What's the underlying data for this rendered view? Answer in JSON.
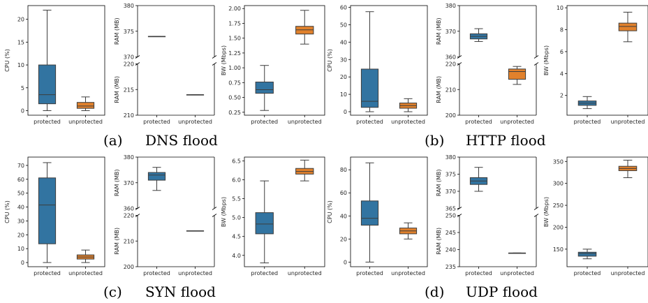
{
  "colors": {
    "protected": "#3274a1",
    "unprotected": "#e1812c",
    "line": "#3d3d3d"
  },
  "captions": [
    {
      "letter": "(a)",
      "title": "DNS flood"
    },
    {
      "letter": "(b)",
      "title": "HTTP flood"
    },
    {
      "letter": "(c)",
      "title": "SYN flood"
    },
    {
      "letter": "(d)",
      "title": "UDP flood"
    }
  ],
  "chart_data": [
    {
      "type": "box",
      "group": "DNS flood",
      "ylabel": "CPU (%)",
      "categories": [
        "protected",
        "unprotected"
      ],
      "ylim": [
        -1,
        23
      ],
      "yticks": [
        0,
        5,
        10,
        15,
        20
      ],
      "boxes": [
        {
          "min": 0,
          "q1": 1.5,
          "median": 3.5,
          "q3": 10,
          "max": 22
        },
        {
          "min": 0,
          "q1": 0.5,
          "median": 1.0,
          "q3": 1.8,
          "max": 3
        }
      ]
    },
    {
      "type": "box",
      "group": "DNS flood",
      "ylabel": "RAM (MB)",
      "broken_axis": true,
      "categories": [
        "protected",
        "unprotected"
      ],
      "top_ylim": [
        370,
        380
      ],
      "top_yticks": [
        370,
        375,
        380
      ],
      "bottom_ylim": [
        210,
        220
      ],
      "bottom_yticks": [
        210,
        215,
        220
      ],
      "boxes": [
        {
          "min": 374,
          "q1": 374,
          "median": 374,
          "q3": 374,
          "max": 374
        },
        {
          "min": 214,
          "q1": 214,
          "median": 214,
          "q3": 214,
          "max": 214
        }
      ]
    },
    {
      "type": "box",
      "group": "DNS flood",
      "ylabel": "BW (Mbps)",
      "categories": [
        "protected",
        "unprotected"
      ],
      "ylim": [
        0.2,
        2.05
      ],
      "yticks": [
        0.25,
        0.5,
        0.75,
        1.0,
        1.25,
        1.5,
        1.75,
        2.0
      ],
      "ytick_labels": [
        "0.25",
        "0.50",
        "0.75",
        "1.00",
        "1.25",
        "1.50",
        "1.75",
        "2.00"
      ],
      "boxes": [
        {
          "min": 0.28,
          "q1": 0.57,
          "median": 0.63,
          "q3": 0.76,
          "max": 1.04
        },
        {
          "min": 1.4,
          "q1": 1.57,
          "median": 1.64,
          "q3": 1.7,
          "max": 1.97
        }
      ]
    },
    {
      "type": "box",
      "group": "HTTP flood",
      "ylabel": "CPU (%)",
      "categories": [
        "protected",
        "unprotected"
      ],
      "ylim": [
        -2,
        61
      ],
      "yticks": [
        0,
        10,
        20,
        30,
        40,
        50,
        60
      ],
      "boxes": [
        {
          "min": 0,
          "q1": 2.5,
          "median": 6,
          "q3": 24.5,
          "max": 57.5
        },
        {
          "min": 0,
          "q1": 2,
          "median": 3.5,
          "q3": 5,
          "max": 7.5
        }
      ]
    },
    {
      "type": "box",
      "group": "HTTP flood",
      "ylabel": "RAM (MB)",
      "broken_axis": true,
      "categories": [
        "protected",
        "unprotected"
      ],
      "top_ylim": [
        360,
        380
      ],
      "top_yticks": [
        360,
        370,
        380
      ],
      "bottom_ylim": [
        200,
        220
      ],
      "bottom_yticks": [
        200,
        210,
        220
      ],
      "boxes": [
        {
          "min": 366,
          "q1": 367,
          "median": 368,
          "q3": 369,
          "max": 371
        },
        {
          "min": 212,
          "q1": 214,
          "median": 217,
          "q3": 218,
          "max": 219
        }
      ]
    },
    {
      "type": "box",
      "group": "HTTP flood",
      "ylabel": "BW (Mbps)",
      "categories": [
        "protected",
        "unprotected"
      ],
      "ylim": [
        0.2,
        10.2
      ],
      "yticks": [
        2,
        4,
        6,
        8,
        10
      ],
      "boxes": [
        {
          "min": 0.8,
          "q1": 1.1,
          "median": 1.3,
          "q3": 1.5,
          "max": 1.9
        },
        {
          "min": 6.9,
          "q1": 7.9,
          "median": 8.3,
          "q3": 8.6,
          "max": 9.6
        }
      ]
    },
    {
      "type": "box",
      "group": "SYN flood",
      "ylabel": "CPU (%)",
      "categories": [
        "protected",
        "unprotected"
      ],
      "ylim": [
        -3,
        76
      ],
      "yticks": [
        0,
        10,
        20,
        30,
        40,
        50,
        60,
        70
      ],
      "boxes": [
        {
          "min": 0,
          "q1": 13.5,
          "median": 41.5,
          "q3": 61,
          "max": 72
        },
        {
          "min": 0,
          "q1": 2.5,
          "median": 4,
          "q3": 5.5,
          "max": 9
        }
      ]
    },
    {
      "type": "box",
      "group": "SYN flood",
      "ylabel": "RAM (MB)",
      "broken_axis": true,
      "categories": [
        "protected",
        "unprotected"
      ],
      "top_ylim": [
        360,
        380
      ],
      "top_yticks": [
        360,
        370,
        380
      ],
      "bottom_ylim": [
        200,
        220
      ],
      "bottom_yticks": [
        200,
        210,
        220
      ],
      "boxes": [
        {
          "min": 367,
          "q1": 371,
          "median": 373,
          "q3": 374,
          "max": 376
        },
        {
          "min": 214,
          "q1": 214,
          "median": 214,
          "q3": 214,
          "max": 214
        }
      ]
    },
    {
      "type": "box",
      "group": "SYN flood",
      "ylabel": "BW (Mbps)",
      "categories": [
        "protected",
        "unprotected"
      ],
      "ylim": [
        3.7,
        6.6
      ],
      "yticks": [
        4.0,
        4.5,
        5.0,
        5.5,
        6.0,
        6.5
      ],
      "ytick_labels": [
        "4.0",
        "4.5",
        "5.0",
        "5.5",
        "6.0",
        "6.5"
      ],
      "boxes": [
        {
          "min": 3.8,
          "q1": 4.57,
          "median": 4.83,
          "q3": 5.13,
          "max": 5.97
        },
        {
          "min": 5.97,
          "q1": 6.15,
          "median": 6.22,
          "q3": 6.3,
          "max": 6.52
        }
      ]
    },
    {
      "type": "box",
      "group": "UDP flood",
      "ylabel": "CPU (%)",
      "categories": [
        "protected",
        "unprotected"
      ],
      "ylim": [
        -4,
        91
      ],
      "yticks": [
        0,
        20,
        40,
        60,
        80
      ],
      "boxes": [
        {
          "min": 0,
          "q1": 32,
          "median": 38,
          "q3": 53,
          "max": 86
        },
        {
          "min": 20,
          "q1": 24.5,
          "median": 27,
          "q3": 29.5,
          "max": 34
        }
      ]
    },
    {
      "type": "box",
      "group": "UDP flood",
      "ylabel": "RAM (MB)",
      "broken_axis": true,
      "categories": [
        "protected",
        "unprotected"
      ],
      "top_ylim": [
        365,
        380
      ],
      "top_yticks": [
        365,
        370,
        375,
        380
      ],
      "bottom_ylim": [
        235,
        250
      ],
      "bottom_yticks": [
        235,
        240,
        245,
        250
      ],
      "boxes": [
        {
          "min": 370,
          "q1": 372,
          "median": 373,
          "q3": 374,
          "max": 377
        },
        {
          "min": 239,
          "q1": 239,
          "median": 239,
          "q3": 239,
          "max": 239
        }
      ]
    },
    {
      "type": "box",
      "group": "UDP flood",
      "ylabel": "BW (Mbps)",
      "categories": [
        "protected",
        "unprotected"
      ],
      "ylim": [
        110,
        360
      ],
      "yticks": [
        150,
        200,
        250,
        300,
        350
      ],
      "boxes": [
        {
          "min": 128,
          "q1": 134,
          "median": 140,
          "q3": 143,
          "max": 150
        },
        {
          "min": 313,
          "q1": 329,
          "median": 334,
          "q3": 339,
          "max": 353
        }
      ]
    }
  ]
}
